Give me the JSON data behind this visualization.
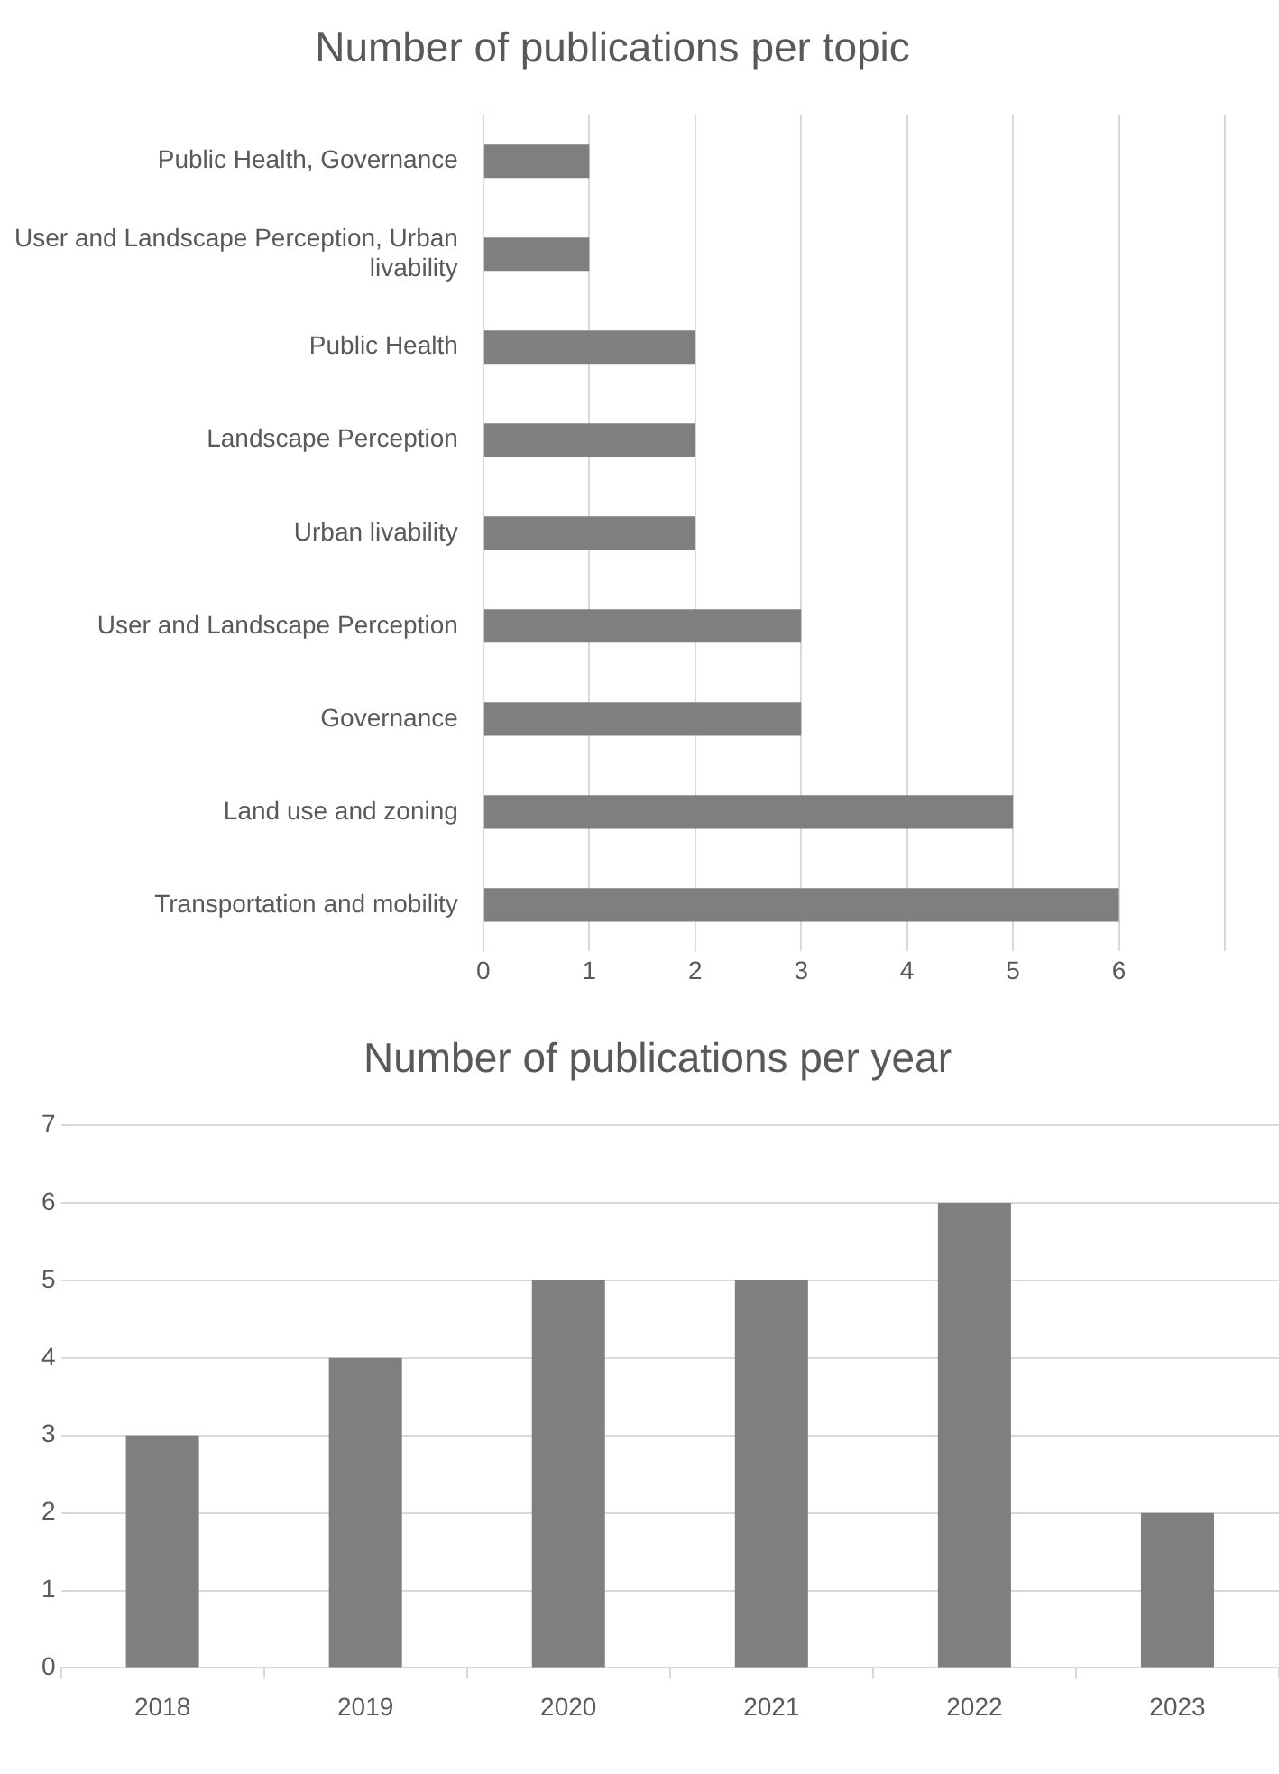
{
  "chart_data": [
    {
      "type": "bar",
      "title": "Number of publications per topic",
      "orientation": "horizontal",
      "categories": [
        "Public Health, Governance",
        "User and Landscape Perception, Urban livability",
        "Public Health",
        "Landscape Perception",
        "Urban livability",
        "User and Landscape Perception",
        "Governance",
        "Land use and zoning",
        "Transportation and mobility"
      ],
      "values": [
        1,
        1,
        2,
        2,
        2,
        3,
        3,
        5,
        6
      ],
      "color": "#7f7f7f",
      "xlim": [
        0,
        7
      ],
      "xticks": [
        0,
        1,
        2,
        3,
        4,
        5,
        6,
        {
          "value": 7,
          "label": null
        }
      ],
      "grid": "x",
      "legend": false
    },
    {
      "type": "bar",
      "title": "Number of publications per year",
      "categories": [
        "2018",
        "2019",
        "2020",
        "2021",
        "2022",
        "2023"
      ],
      "values": [
        3,
        4,
        5,
        5,
        6,
        2
      ],
      "color": "#7f7f7f",
      "ylim": [
        0,
        7
      ],
      "yticks": [
        0,
        1,
        2,
        3,
        4,
        5,
        6,
        7
      ],
      "grid": "y",
      "legend": false
    }
  ]
}
